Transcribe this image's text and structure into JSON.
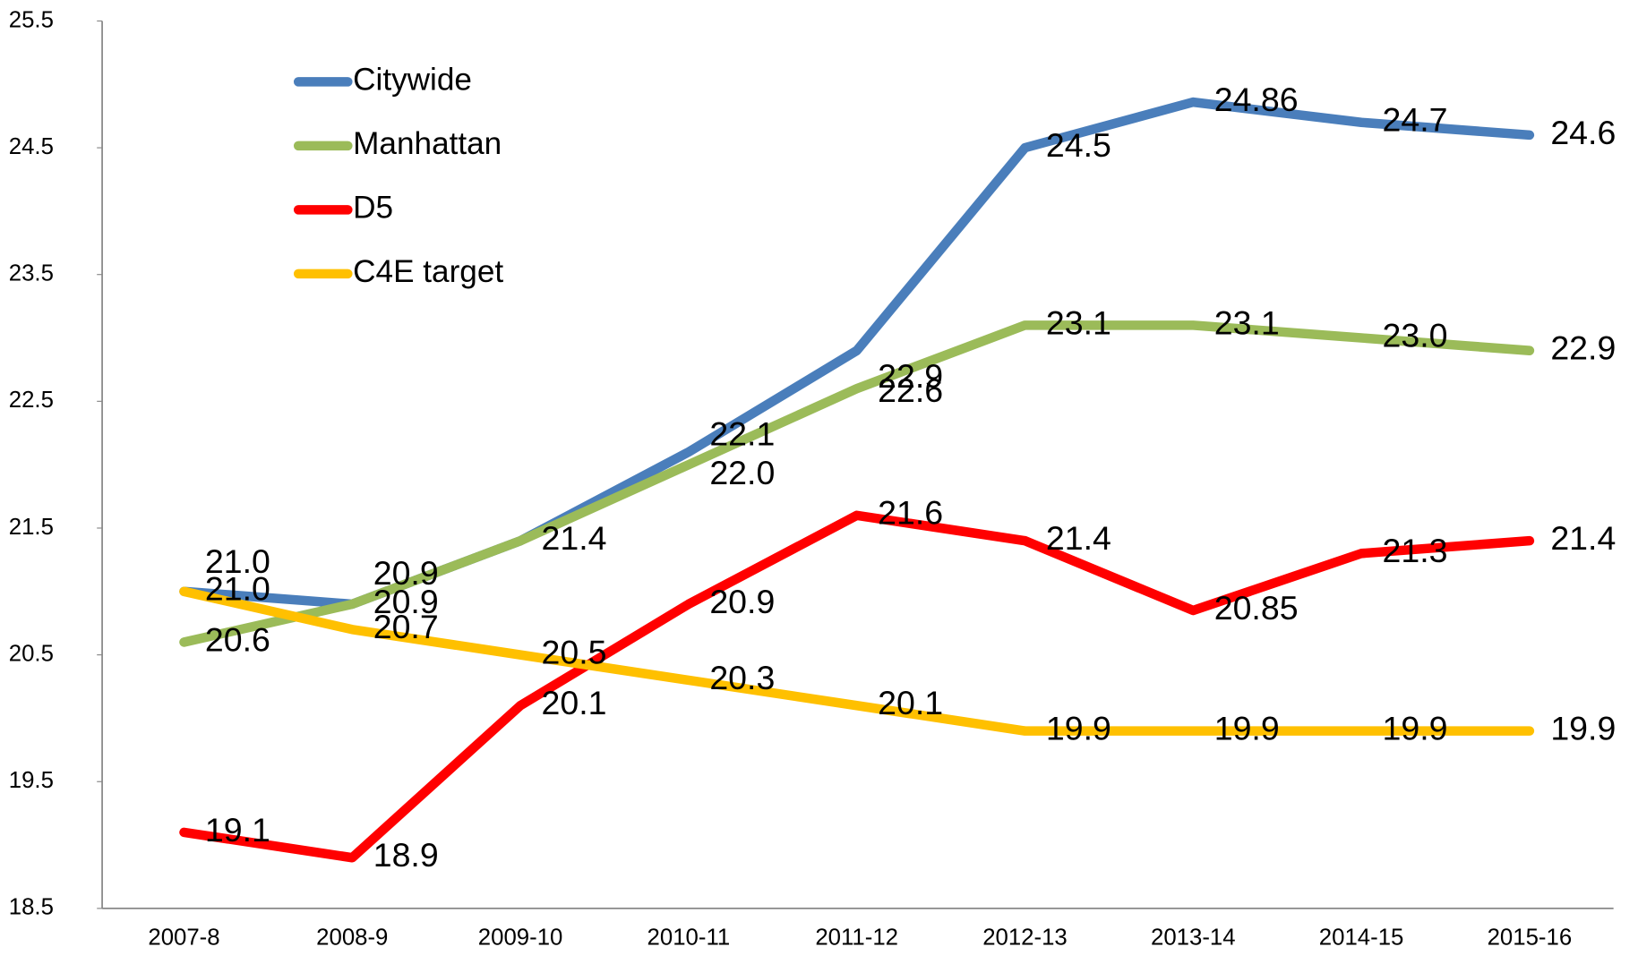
{
  "chart_data": {
    "type": "line",
    "categories": [
      "2007-8",
      "2008-9",
      "2009-10",
      "2010-11",
      "2011-12",
      "2012-13",
      "2013-14",
      "2014-15",
      "2015-16"
    ],
    "series": [
      {
        "name": "Citywide",
        "color": "#4a7ebb",
        "values": [
          21.0,
          20.9,
          21.4,
          22.1,
          22.9,
          24.5,
          24.86,
          24.7,
          24.6
        ],
        "value_labels": [
          "21.0",
          "20.9",
          null,
          "22.1",
          "22.9",
          "24.5",
          "24.86",
          "24.7",
          "24.6"
        ]
      },
      {
        "name": "Manhattan",
        "color": "#9bbb59",
        "values": [
          20.6,
          20.9,
          21.4,
          22.0,
          22.6,
          23.1,
          23.1,
          23.0,
          22.9
        ],
        "value_labels": [
          "20.6",
          "20.9",
          "21.4",
          "22.0",
          "22.6",
          "23.1",
          "23.1",
          "23.0",
          "22.9"
        ]
      },
      {
        "name": "D5",
        "color": "#ff0000",
        "values": [
          19.1,
          18.9,
          20.1,
          20.9,
          21.6,
          21.4,
          20.85,
          21.3,
          21.4
        ],
        "value_labels": [
          "19.1",
          "18.9",
          "20.1",
          "20.9",
          "21.6",
          "21.4",
          "20.85",
          "21.3",
          "21.4"
        ]
      },
      {
        "name": "C4E target",
        "color": "#ffc000",
        "values": [
          21.0,
          20.7,
          20.5,
          20.3,
          20.1,
          19.9,
          19.9,
          19.9,
          19.9
        ],
        "value_labels": [
          "21.0",
          "20.7",
          "20.5",
          "20.3",
          "20.1",
          "19.9",
          "19.9",
          "19.9",
          "19.9"
        ]
      }
    ],
    "ylim": [
      18.5,
      25.5
    ],
    "yticks": [
      18.5,
      19.5,
      20.5,
      21.5,
      22.5,
      23.5,
      24.5,
      25.5
    ],
    "grid": false,
    "legend": "upper left"
  }
}
